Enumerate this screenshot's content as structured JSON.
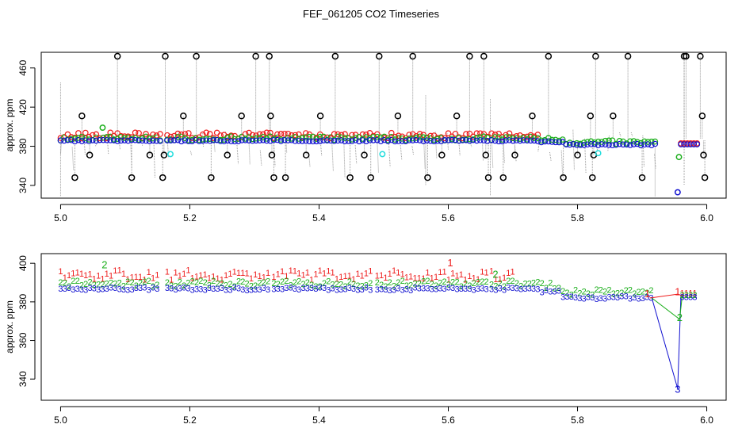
{
  "title": "FEF_061205  CO2 Timeseries",
  "chart_data": [
    {
      "type": "scatter",
      "ylabel": "approx. ppm",
      "xlim": [
        4.97,
        6.03
      ],
      "ylim": [
        327,
        476
      ],
      "xticks": [
        "5.0",
        "5.2",
        "5.4",
        "5.6",
        "5.8",
        "6.0"
      ],
      "xtick_values": [
        5.0,
        5.2,
        5.4,
        5.6,
        5.8,
        6.0
      ],
      "yticks": [
        "340",
        "380",
        "420",
        "460"
      ],
      "ytick_values": [
        340,
        380,
        420,
        460
      ],
      "colors": {
        "red": "#ee1c1c",
        "green": "#1aae1a",
        "blue": "#1010d0",
        "black": "#000000",
        "cyan": "#22dddd",
        "trace": "#999999"
      },
      "blocks": [
        [
          5.0,
          5.155
        ],
        [
          5.165,
          5.325
        ],
        [
          5.33,
          5.485
        ],
        [
          5.49,
          5.663
        ],
        [
          5.667,
          5.92
        ]
      ],
      "black_points": [
        {
          "x": 5.022,
          "y": 348
        },
        {
          "x": 5.033,
          "y": 411
        },
        {
          "x": 5.045,
          "y": 371
        },
        {
          "x": 5.088,
          "y": 472
        },
        {
          "x": 5.11,
          "y": 348
        },
        {
          "x": 5.138,
          "y": 371
        },
        {
          "x": 5.158,
          "y": 348
        },
        {
          "x": 5.162,
          "y": 472
        },
        {
          "x": 5.16,
          "y": 371
        },
        {
          "x": 5.19,
          "y": 411
        },
        {
          "x": 5.21,
          "y": 472
        },
        {
          "x": 5.233,
          "y": 348
        },
        {
          "x": 5.258,
          "y": 371
        },
        {
          "x": 5.28,
          "y": 411
        },
        {
          "x": 5.302,
          "y": 472
        },
        {
          "x": 5.323,
          "y": 472
        },
        {
          "x": 5.325,
          "y": 411
        },
        {
          "x": 5.327,
          "y": 371
        },
        {
          "x": 5.33,
          "y": 348
        },
        {
          "x": 5.348,
          "y": 348
        },
        {
          "x": 5.38,
          "y": 371
        },
        {
          "x": 5.402,
          "y": 411
        },
        {
          "x": 5.425,
          "y": 472
        },
        {
          "x": 5.448,
          "y": 348
        },
        {
          "x": 5.47,
          "y": 371
        },
        {
          "x": 5.48,
          "y": 348
        },
        {
          "x": 5.493,
          "y": 472
        },
        {
          "x": 5.522,
          "y": 411
        },
        {
          "x": 5.545,
          "y": 472
        },
        {
          "x": 5.568,
          "y": 348
        },
        {
          "x": 5.59,
          "y": 371
        },
        {
          "x": 5.613,
          "y": 411
        },
        {
          "x": 5.633,
          "y": 472
        },
        {
          "x": 5.655,
          "y": 472
        },
        {
          "x": 5.658,
          "y": 371
        },
        {
          "x": 5.662,
          "y": 348
        },
        {
          "x": 5.685,
          "y": 348
        },
        {
          "x": 5.703,
          "y": 371
        },
        {
          "x": 5.73,
          "y": 411
        },
        {
          "x": 5.755,
          "y": 472
        },
        {
          "x": 5.778,
          "y": 348
        },
        {
          "x": 5.8,
          "y": 371
        },
        {
          "x": 5.82,
          "y": 411
        },
        {
          "x": 5.823,
          "y": 348
        },
        {
          "x": 5.825,
          "y": 371
        },
        {
          "x": 5.828,
          "y": 472
        },
        {
          "x": 5.855,
          "y": 411
        },
        {
          "x": 5.878,
          "y": 472
        },
        {
          "x": 5.9,
          "y": 348
        },
        {
          "x": 5.965,
          "y": 472
        },
        {
          "x": 5.968,
          "y": 472
        },
        {
          "x": 5.99,
          "y": 472
        },
        {
          "x": 5.993,
          "y": 411
        },
        {
          "x": 5.995,
          "y": 371
        },
        {
          "x": 5.997,
          "y": 348
        }
      ],
      "green_points": [
        {
          "x": 5.065,
          "y": 399
        },
        {
          "x": 5.957,
          "y": 369
        }
      ],
      "cyan_points": [
        {
          "x": 5.17,
          "y": 372
        },
        {
          "x": 5.498,
          "y": 372
        },
        {
          "x": 5.832,
          "y": 373
        }
      ],
      "blue_points": [
        {
          "x": 5.955,
          "y": 333
        }
      ]
    },
    {
      "type": "scatter",
      "ylabel": "approx. ppm",
      "xlim": [
        4.97,
        6.03
      ],
      "ylim": [
        329,
        405
      ],
      "xticks": [
        "5.0",
        "5.2",
        "5.4",
        "5.6",
        "5.8",
        "6.0"
      ],
      "xtick_values": [
        5.0,
        5.2,
        5.4,
        5.6,
        5.8,
        6.0
      ],
      "yticks": [
        "340",
        "360",
        "380",
        "400"
      ],
      "ytick_values": [
        340,
        360,
        380,
        400
      ],
      "series_labels": [
        "1",
        "2",
        "3"
      ],
      "annotations": [
        {
          "text": "2",
          "x": 5.068,
          "y": 397.5,
          "color": "#1aae1a"
        },
        {
          "text": "1",
          "x": 5.603,
          "y": 398.5,
          "color": "#ee1c1c"
        },
        {
          "text": "2",
          "x": 5.673,
          "y": 392.5,
          "color": "#1aae1a"
        },
        {
          "text": "1",
          "x": 5.908,
          "y": 382.5,
          "color": "#ee1c1c"
        },
        {
          "text": "1",
          "x": 5.955,
          "y": 383.5,
          "color": "#ee1c1c"
        },
        {
          "text": "2",
          "x": 5.958,
          "y": 370,
          "color": "#1aae1a"
        },
        {
          "text": "3",
          "x": 5.955,
          "y": 333,
          "color": "#1010d0"
        }
      ]
    }
  ]
}
